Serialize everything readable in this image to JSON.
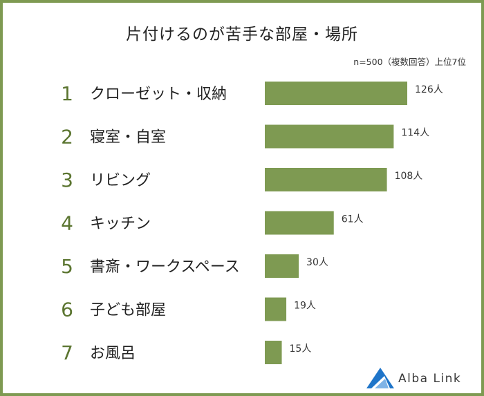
{
  "title": "片付けるのが苦手な部屋・場所",
  "note": "n=500（複数回答）上位7位",
  "brand": {
    "name": "Alba Link"
  },
  "colors": {
    "bar": "#7e9a52",
    "rank": "#5b7530",
    "frame": "#7e9a52",
    "logo_blue": "#1f75c9"
  },
  "chart_data": {
    "type": "bar",
    "orientation": "horizontal",
    "title": "片付けるのが苦手な部屋・場所",
    "ranks": [
      "1",
      "2",
      "3",
      "4",
      "5",
      "6",
      "7"
    ],
    "categories": [
      "クローゼット・収納",
      "寝室・自室",
      "リビング",
      "キッチン",
      "書斎・ワークスペース",
      "子ども部屋",
      "お風呂"
    ],
    "values": [
      126,
      114,
      108,
      61,
      30,
      19,
      15
    ],
    "value_labels": [
      "126人",
      "114人",
      "108人",
      "61人",
      "30人",
      "19人",
      "15人"
    ],
    "unit": "人",
    "xlim": [
      0,
      126
    ],
    "grid": false,
    "legend": "none"
  }
}
